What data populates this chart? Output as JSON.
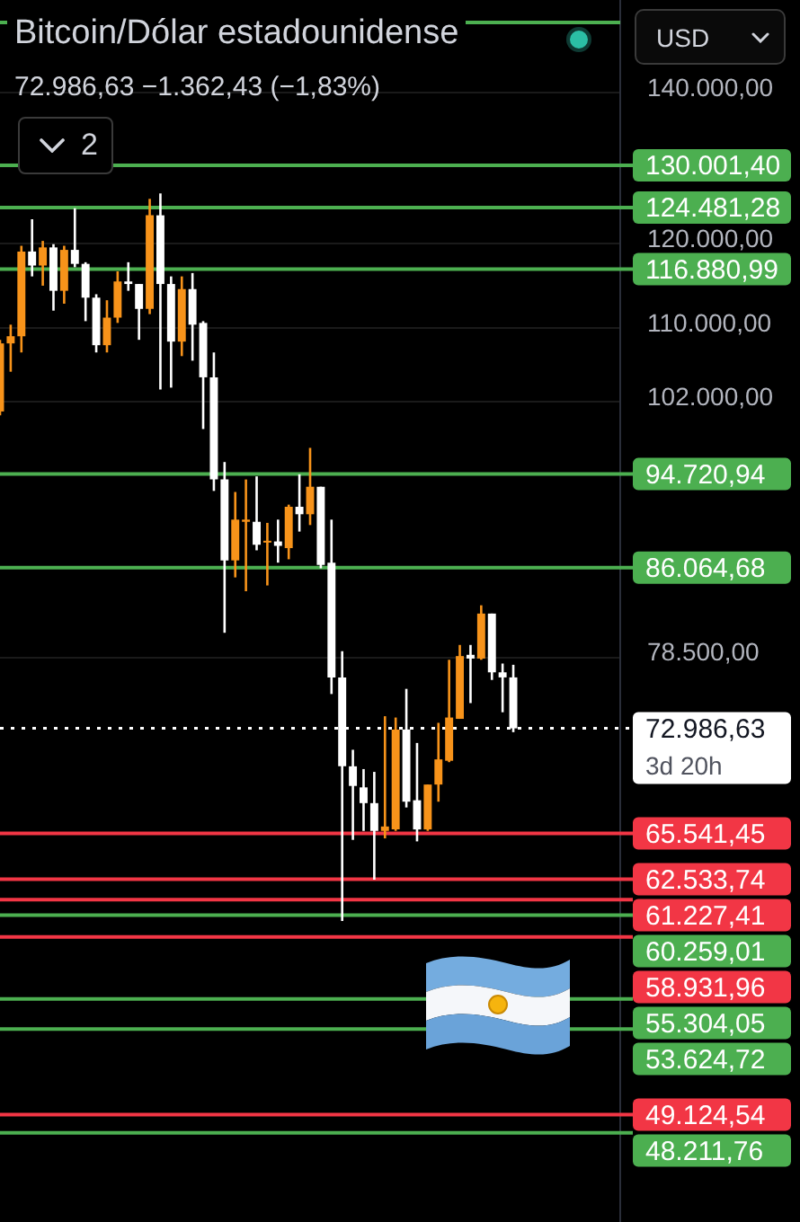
{
  "chart_data": {
    "type": "candlestick",
    "title": "Bitcoin/Dólar estadounidense",
    "subtitle": "72.986,63 −1.362,43 (−1,83%)",
    "categories": [
      null,
      null,
      null,
      null,
      null,
      null,
      null,
      null,
      null,
      null,
      null,
      null,
      null,
      null,
      null,
      null,
      null,
      null,
      null,
      null,
      null,
      null,
      null,
      null,
      null,
      null,
      null,
      null,
      null,
      null,
      null,
      null,
      null,
      null,
      null,
      null,
      null,
      null,
      null,
      null,
      null,
      null,
      null,
      null,
      null,
      null,
      null,
      null,
      null
    ],
    "ohlc": [
      [
        101000,
        108700,
        100600,
        108300
      ],
      [
        108300,
        110400,
        105200,
        109100
      ],
      [
        109100,
        119700,
        107300,
        119000
      ],
      [
        119000,
        123000,
        116000,
        117300
      ],
      [
        117300,
        120300,
        114900,
        119500
      ],
      [
        119500,
        119900,
        112000,
        114300
      ],
      [
        114300,
        119700,
        112800,
        119200
      ],
      [
        119200,
        124400,
        117100,
        117500
      ],
      [
        117500,
        117700,
        110800,
        113500
      ],
      [
        113500,
        113900,
        107300,
        108100
      ],
      [
        108100,
        113200,
        107300,
        111200
      ],
      [
        111200,
        116600,
        110600,
        115400
      ],
      [
        115400,
        117700,
        114300,
        115100
      ],
      [
        115100,
        115100,
        108700,
        112200
      ],
      [
        112200,
        125600,
        111600,
        123500
      ],
      [
        123500,
        126300,
        103300,
        115100
      ],
      [
        115100,
        116000,
        103500,
        108500
      ],
      [
        108500,
        116000,
        106900,
        114500
      ],
      [
        114500,
        116400,
        106400,
        110400
      ],
      [
        110600,
        110800,
        99200,
        104600
      ],
      [
        104600,
        107300,
        93100,
        94200
      ],
      [
        94200,
        95900,
        80500,
        86700
      ],
      [
        86700,
        93000,
        85200,
        90400
      ],
      [
        90200,
        94200,
        84000,
        90400
      ],
      [
        90200,
        94500,
        87600,
        88100
      ],
      [
        88300,
        90100,
        84500,
        88400
      ],
      [
        88400,
        90400,
        86500,
        88000
      ],
      [
        87800,
        91800,
        86800,
        91600
      ],
      [
        91600,
        94700,
        89300,
        90900
      ],
      [
        90900,
        97300,
        89900,
        93500
      ],
      [
        93500,
        93500,
        86000,
        86300
      ],
      [
        86500,
        90400,
        75600,
        76900
      ],
      [
        76900,
        79000,
        59900,
        70200
      ],
      [
        70200,
        71400,
        65100,
        68800
      ],
      [
        68700,
        70000,
        65700,
        67600
      ],
      [
        67600,
        69800,
        62500,
        65700
      ],
      [
        65700,
        73900,
        65200,
        66000
      ],
      [
        65800,
        73800,
        65700,
        72900
      ],
      [
        72900,
        76000,
        67300,
        67700
      ],
      [
        67800,
        71900,
        65000,
        65800
      ],
      [
        65800,
        68900,
        65700,
        68900
      ],
      [
        68900,
        73400,
        67700,
        70700
      ],
      [
        70600,
        78300,
        70500,
        73800
      ],
      [
        73700,
        79500,
        73700,
        78600
      ],
      [
        78700,
        79500,
        74900,
        78400
      ],
      [
        78400,
        82800,
        78300,
        82100
      ],
      [
        82100,
        82100,
        76700,
        77300
      ],
      [
        77300,
        78000,
        74200,
        76900
      ],
      [
        76900,
        77900,
        72700,
        72986.63
      ]
    ],
    "colors": [
      "#f7931a",
      "#f7931a",
      "#f7931a",
      "#ffffff",
      "#f7931a",
      "#ffffff",
      "#f7931a",
      "#ffffff",
      "#ffffff",
      "#ffffff",
      "#f7931a",
      "#f7931a",
      "#ffffff",
      "#ffffff",
      "#f7931a",
      "#ffffff",
      "#ffffff",
      "#f7931a",
      "#ffffff",
      "#ffffff",
      "#ffffff",
      "#ffffff",
      "#f7931a",
      "#f7931a",
      "#ffffff",
      "#f7931a",
      "#ffffff",
      "#f7931a",
      "#ffffff",
      "#f7931a",
      "#ffffff",
      "#ffffff",
      "#ffffff",
      "#ffffff",
      "#ffffff",
      "#ffffff",
      "#f7931a",
      "#f7931a",
      "#ffffff",
      "#ffffff",
      "#f7931a",
      "#f7931a",
      "#f7931a",
      "#f7931a",
      "#ffffff",
      "#f7931a",
      "#ffffff",
      "#ffffff",
      "#ffffff"
    ],
    "ylim": [
      44000,
      154000
    ],
    "yticks": [
      {
        "value": 140000,
        "label": "140.000,00"
      },
      {
        "value": 120000,
        "label": "120.000,00"
      },
      {
        "value": 110000,
        "label": "110.000,00"
      },
      {
        "value": 102000,
        "label": "102.000,00"
      },
      {
        "value": 78500,
        "label": "78.500,00"
      }
    ],
    "log": "y",
    "grid": "y",
    "tick_labels": "y",
    "ref_lines": [
      {
        "axis": "y",
        "value": 150500,
        "color": "#4caf50"
      },
      {
        "axis": "y",
        "value": 130001.4,
        "label": "130.001,40",
        "color": "#4caf50"
      },
      {
        "axis": "y",
        "value": 124481.28,
        "label": "124.481,28",
        "color": "#4caf50"
      },
      {
        "axis": "y",
        "value": 116880.99,
        "label": "116.880,99",
        "color": "#4caf50"
      },
      {
        "axis": "y",
        "value": 94720.94,
        "label": "94.720,94",
        "color": "#4caf50"
      },
      {
        "axis": "y",
        "value": 86064.68,
        "label": "86.064,68",
        "color": "#4caf50"
      },
      {
        "axis": "y",
        "value": 72986.63,
        "label": "72.986,63\n3d 20h",
        "color": "#ffffff",
        "line_style": "dotted"
      },
      {
        "axis": "y",
        "value": 65541.45,
        "label": "65.541,45",
        "color": "#f23645"
      },
      {
        "axis": "y",
        "value": 62533.74,
        "label": "62.533,74",
        "color": "#f23645"
      },
      {
        "axis": "y",
        "value": 61227.41,
        "label": "61.227,41",
        "color": "#f23645"
      },
      {
        "axis": "y",
        "value": 60259.01,
        "label": "60.259,01",
        "color": "#4caf50"
      },
      {
        "axis": "y",
        "value": 58931.96,
        "label": "58.931,96",
        "color": "#f23645"
      },
      {
        "axis": "y",
        "value": 55304.05,
        "label": "55.304,05",
        "color": "#4caf50"
      },
      {
        "axis": "y",
        "value": 53624.72,
        "label": "53.624,72",
        "color": "#4caf50"
      },
      {
        "axis": "y",
        "value": 49124.54,
        "label": "49.124,54",
        "color": "#f23645"
      },
      {
        "axis": "y",
        "value": 48211.76,
        "label": "48.211,76",
        "color": "#4caf50"
      }
    ],
    "annotations": [
      "USD",
      "2"
    ]
  }
}
